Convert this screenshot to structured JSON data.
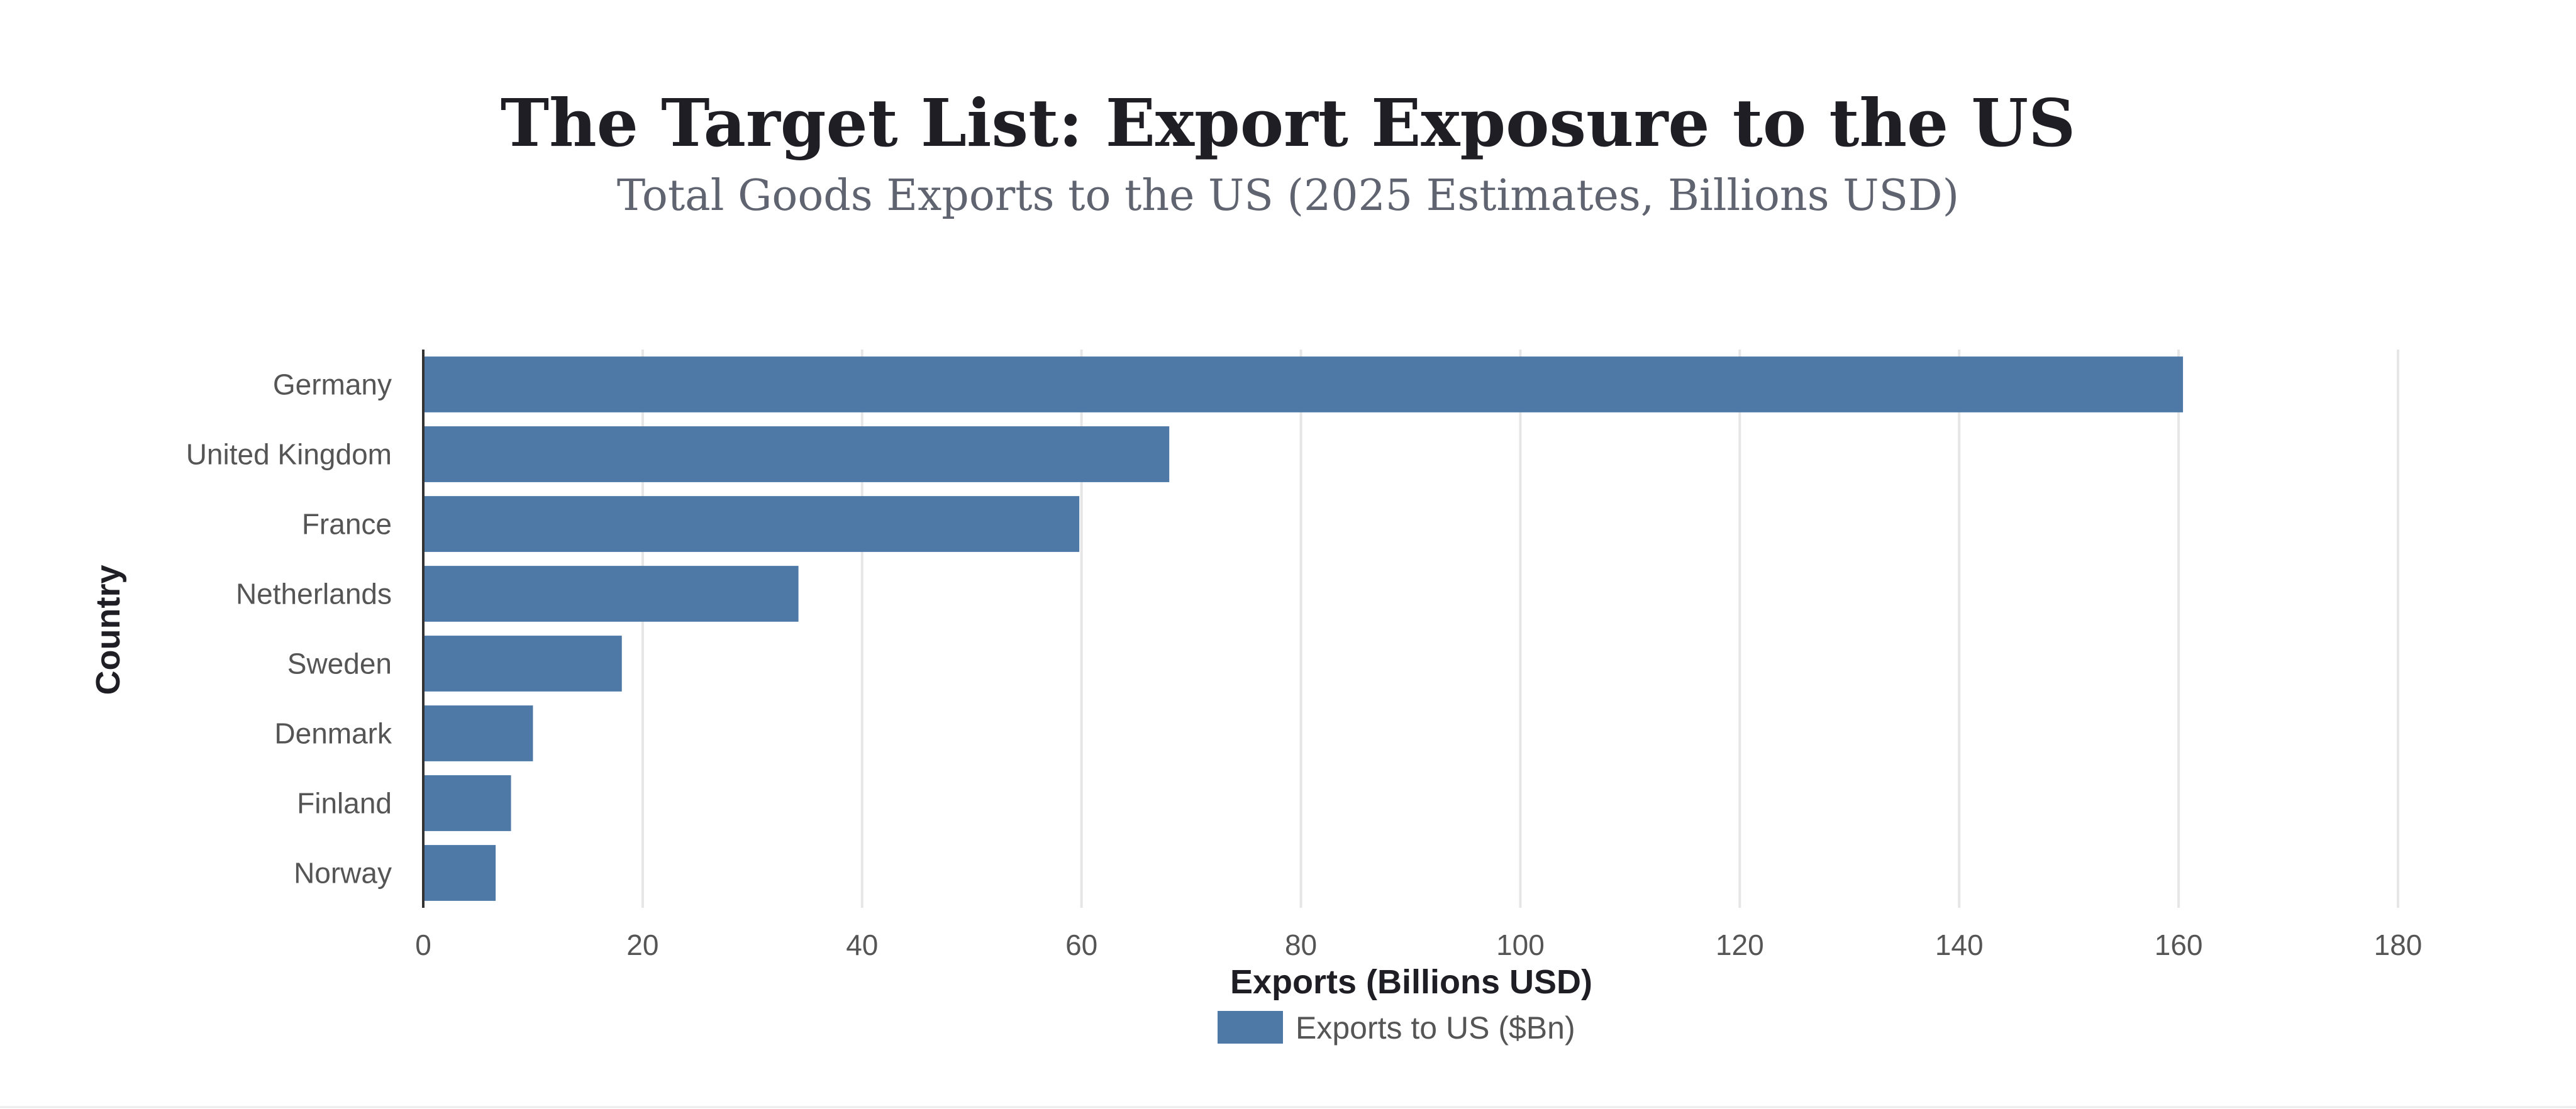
{
  "chart_data": {
    "type": "bar",
    "orientation": "horizontal",
    "title": "The Target List: Export Exposure to the US",
    "subtitle": "Total Goods Exports to the US (2025 Estimates, Billions USD)",
    "xlabel": "Exports (Billions USD)",
    "ylabel": "Country",
    "xlim": [
      0,
      180
    ],
    "xticks": [
      0,
      20,
      40,
      60,
      80,
      100,
      120,
      140,
      160,
      180
    ],
    "grid": true,
    "legend_position": "bottom-center",
    "categories": [
      "Germany",
      "United Kingdom",
      "France",
      "Netherlands",
      "Sweden",
      "Denmark",
      "Finland",
      "Norway"
    ],
    "series": [
      {
        "name": "Exports to US ($Bn)",
        "color": "#4e79a7",
        "values": [
          160.4,
          68,
          59.8,
          34.2,
          18.1,
          10,
          8,
          6.6
        ]
      }
    ]
  }
}
